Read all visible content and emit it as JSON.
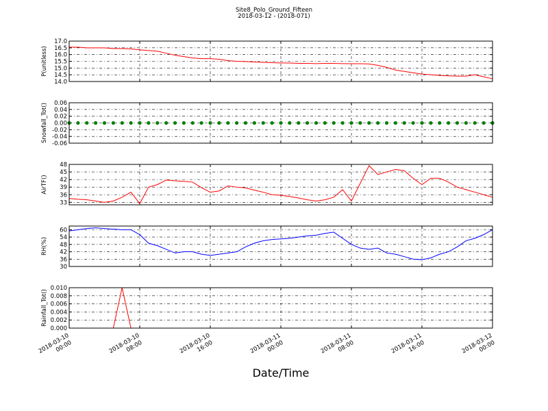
{
  "figure": {
    "title": "Site8_Polo_Ground_Fifteen",
    "subtitle": "2018-03-12 - (2018-071)",
    "xlabel": "Date/Time",
    "xlim": [
      "2018-03-10 00:00",
      "2018-03-12 00:00"
    ],
    "xticks": [
      "2018-03-10 00:00",
      "2018-03-10 08:00",
      "2018-03-10 16:00",
      "2018-03-11 00:00",
      "2018-03-11 08:00",
      "2018-03-11 16:00",
      "2018-03-12 00:00"
    ],
    "x": [
      "2018-03-10 00:00",
      "2018-03-10 01:00",
      "2018-03-10 02:00",
      "2018-03-10 03:00",
      "2018-03-10 04:00",
      "2018-03-10 05:00",
      "2018-03-10 06:00",
      "2018-03-10 07:00",
      "2018-03-10 08:00",
      "2018-03-10 09:00",
      "2018-03-10 10:00",
      "2018-03-10 11:00",
      "2018-03-10 12:00",
      "2018-03-10 13:00",
      "2018-03-10 14:00",
      "2018-03-10 15:00",
      "2018-03-10 16:00",
      "2018-03-10 17:00",
      "2018-03-10 18:00",
      "2018-03-10 19:00",
      "2018-03-10 20:00",
      "2018-03-10 21:00",
      "2018-03-10 22:00",
      "2018-03-10 23:00",
      "2018-03-11 00:00",
      "2018-03-11 01:00",
      "2018-03-11 02:00",
      "2018-03-11 03:00",
      "2018-03-11 04:00",
      "2018-03-11 05:00",
      "2018-03-11 06:00",
      "2018-03-11 07:00",
      "2018-03-11 08:00",
      "2018-03-11 09:00",
      "2018-03-11 10:00",
      "2018-03-11 11:00",
      "2018-03-11 12:00",
      "2018-03-11 13:00",
      "2018-03-11 14:00",
      "2018-03-11 15:00",
      "2018-03-11 16:00",
      "2018-03-11 17:00",
      "2018-03-11 18:00",
      "2018-03-11 19:00",
      "2018-03-11 20:00",
      "2018-03-11 21:00",
      "2018-03-11 22:00",
      "2018-03-11 23:00",
      "2018-03-12 00:00"
    ]
  },
  "chart_data": [
    {
      "type": "line",
      "ylabel": "P(unitless)",
      "ylim": [
        14.0,
        17.0
      ],
      "yticks": [
        {
          "value": 14.0,
          "label": "14.0"
        },
        14.5,
        {
          "value": 15.0,
          "label": "15.0"
        },
        15.5,
        {
          "value": 16.0,
          "label": "16.0"
        },
        16.5,
        {
          "value": 17.0,
          "label": "17.0"
        }
      ],
      "series": [
        {
          "color": "#ff0000",
          "values": [
            16.55,
            16.55,
            16.5,
            16.5,
            16.5,
            16.45,
            16.45,
            16.42,
            16.35,
            16.3,
            16.25,
            16.1,
            15.95,
            15.85,
            15.75,
            15.7,
            15.7,
            15.65,
            15.55,
            15.5,
            15.48,
            15.45,
            15.42,
            15.4,
            15.38,
            15.37,
            15.35,
            15.35,
            15.33,
            15.35,
            15.35,
            15.33,
            15.32,
            15.32,
            15.3,
            15.2,
            15.05,
            14.85,
            14.75,
            14.65,
            14.55,
            14.5,
            14.45,
            14.42,
            14.4,
            14.4,
            14.5,
            14.35,
            14.2
          ]
        }
      ]
    },
    {
      "type": "scatter",
      "ylabel": "Snowfall_Tot()",
      "ylim": [
        -0.06,
        0.06
      ],
      "yticks": [
        {
          "value": -0.06,
          "label": "-0.06"
        },
        {
          "value": -0.04,
          "label": "-0.04"
        },
        {
          "value": -0.02,
          "label": "-0.02"
        },
        {
          "value": 0,
          "label": "0.00"
        },
        0.02,
        0.04,
        0.06
      ],
      "series": [
        {
          "color": "#008000",
          "values": [
            0,
            0,
            0,
            0,
            0,
            0,
            0,
            0,
            0,
            0,
            0,
            0,
            0,
            0,
            0,
            0,
            0,
            0,
            0,
            0,
            0,
            0,
            0,
            0,
            0,
            0,
            0,
            0,
            0,
            0,
            0,
            0,
            0,
            0,
            0,
            0,
            0,
            0,
            0,
            0,
            0,
            0,
            0,
            0,
            0,
            0,
            0,
            0,
            0
          ]
        }
      ]
    },
    {
      "type": "line",
      "ylabel": "AirTF()",
      "ylim": [
        32,
        48
      ],
      "yticks": [
        33,
        36,
        39,
        42,
        45,
        48
      ],
      "series": [
        {
          "color": "#ff0000",
          "values": [
            34.5,
            34.2,
            34,
            33.5,
            33,
            33.5,
            35,
            37,
            32.5,
            39,
            40,
            41.8,
            41.5,
            41.3,
            41,
            38.8,
            37,
            37.5,
            39.5,
            39,
            38.7,
            37.8,
            37,
            36,
            35.8,
            35.3,
            34.7,
            34,
            33.5,
            34,
            35,
            38,
            33.5,
            40.5,
            47.5,
            44,
            45,
            46,
            45.5,
            42.5,
            40,
            42.5,
            42.5,
            41,
            39,
            38,
            37,
            36,
            35
          ]
        }
      ]
    },
    {
      "type": "line",
      "ylabel": "RH(%)",
      "ylim": [
        30,
        63
      ],
      "yticks": [
        30,
        36,
        42,
        48,
        54,
        60
      ],
      "series": [
        {
          "color": "#0000ff",
          "values": [
            59,
            60,
            61,
            61.5,
            61,
            60.5,
            60,
            60,
            56,
            49,
            47,
            44,
            41,
            42,
            42,
            40,
            39,
            40,
            41,
            42,
            46,
            49,
            51,
            52,
            52.5,
            53,
            54,
            55,
            55.5,
            57,
            58,
            53,
            48,
            45,
            44,
            45,
            41,
            40,
            38,
            36,
            35.5,
            37,
            40,
            42,
            46,
            51,
            53,
            56,
            60
          ]
        }
      ]
    },
    {
      "type": "line",
      "ylabel": "Rainfall_Tot()",
      "ylim": [
        0,
        0.01
      ],
      "yticks": [
        {
          "value": 0,
          "label": "0.000"
        },
        {
          "value": 0.002,
          "label": "0.002"
        },
        {
          "value": 0.004,
          "label": "0.004"
        },
        {
          "value": 0.006,
          "label": "0.006"
        },
        {
          "value": 0.008,
          "label": "0.008"
        },
        {
          "value": 0.01,
          "label": "0.010"
        }
      ],
      "series": [
        {
          "color": "#ff0000",
          "values": [
            0,
            0,
            0,
            0,
            0,
            0,
            0.01,
            0,
            0,
            0,
            0,
            0,
            0,
            0,
            0,
            0,
            0,
            0,
            0,
            0,
            0,
            0,
            0,
            0,
            0,
            0,
            0,
            0,
            0,
            0,
            0,
            0,
            0,
            0,
            0,
            0,
            0,
            0,
            0,
            0,
            0,
            0,
            0,
            0,
            0,
            0,
            0,
            0,
            0
          ]
        }
      ]
    }
  ]
}
